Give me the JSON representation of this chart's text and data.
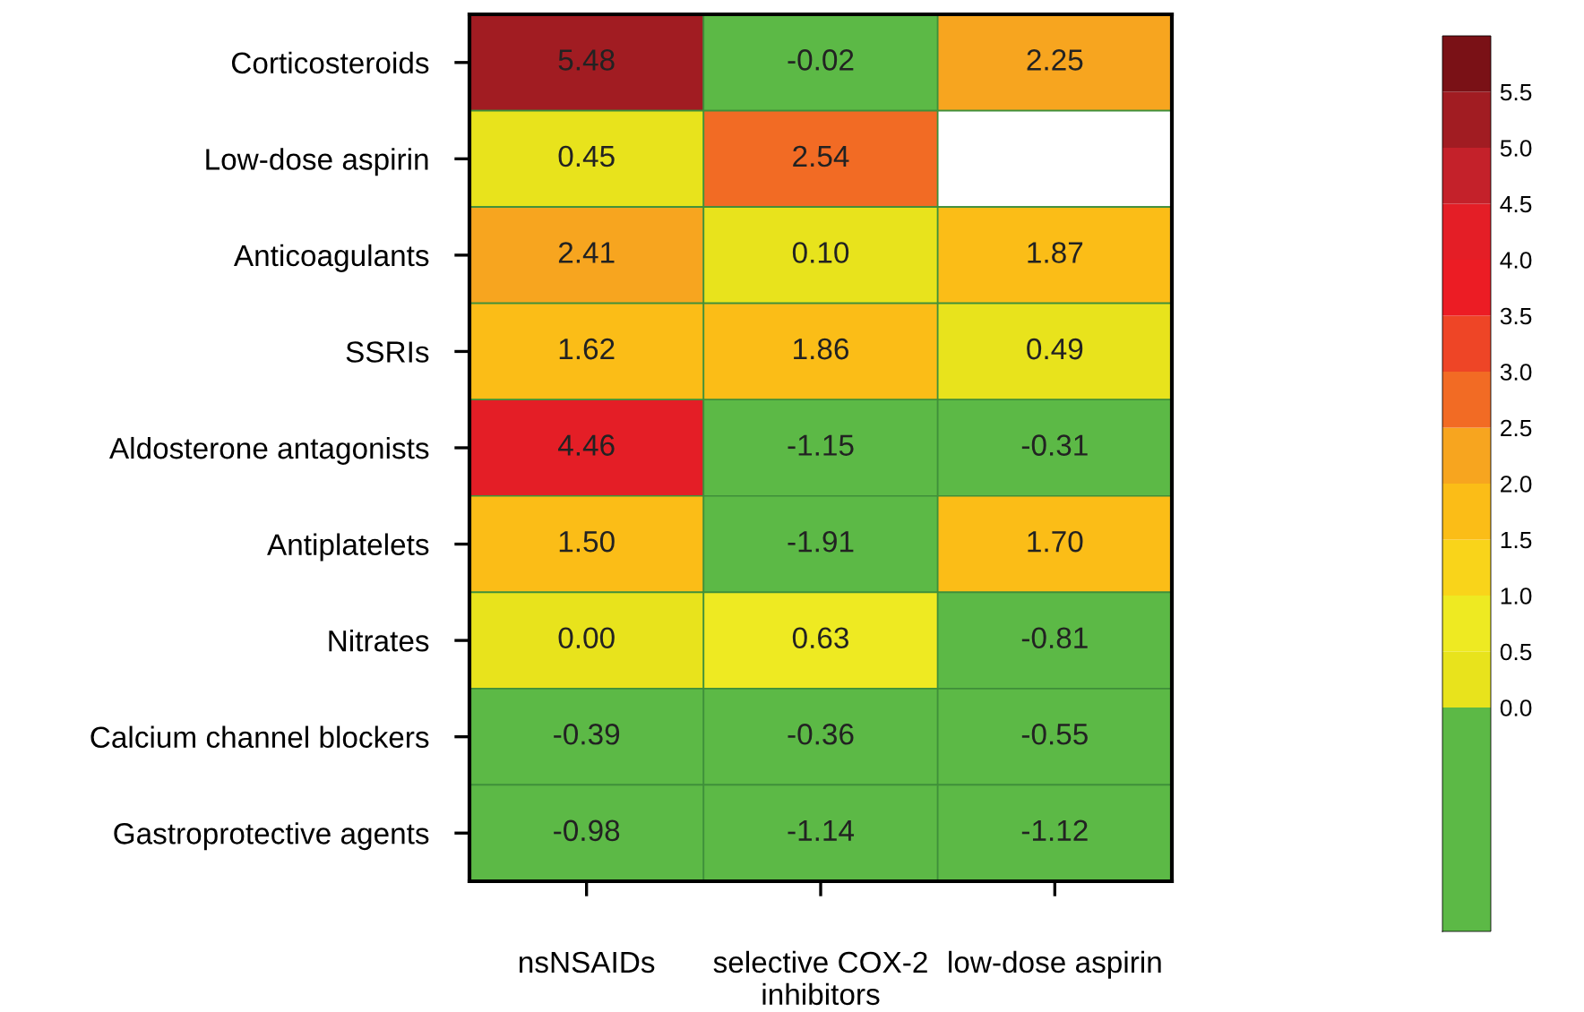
{
  "chart_data": {
    "type": "heatmap",
    "categories": [
      "nsNSAIDs",
      "selective COX-2\ninhibitors",
      "low-dose aspirin"
    ],
    "y_categories": [
      "Corticosteroids",
      "Low-dose aspirin",
      "Anticoagulants",
      "SSRIs",
      "Aldosterone antagonists",
      "Antiplatelets",
      "Nitrates",
      "Calcium channel blockers",
      "Gastroprotective agents"
    ],
    "cells": [
      [
        5.48,
        -0.02,
        2.25
      ],
      [
        0.45,
        2.54,
        null
      ],
      [
        2.41,
        0.1,
        1.87
      ],
      [
        1.62,
        1.86,
        0.49
      ],
      [
        4.46,
        -1.15,
        -0.31
      ],
      [
        1.5,
        -1.91,
        1.7
      ],
      [
        0.0,
        0.63,
        -0.81
      ],
      [
        -0.39,
        -0.36,
        -0.55
      ],
      [
        -0.98,
        -1.14,
        -1.12
      ]
    ],
    "cell_labels": [
      [
        "5.48",
        "-0.02",
        "2.25"
      ],
      [
        "0.45",
        "2.54",
        null
      ],
      [
        "2.41",
        "0.10",
        "1.87"
      ],
      [
        "1.62",
        "1.86",
        "0.49"
      ],
      [
        "4.46",
        "-1.15",
        "-0.31"
      ],
      [
        "1.50",
        "-1.91",
        "1.70"
      ],
      [
        "0.00",
        "0.63",
        "-0.81"
      ],
      [
        "-0.39",
        "-0.36",
        "-0.55"
      ],
      [
        "-0.98",
        "-1.14",
        "-1.12"
      ]
    ],
    "clim": [
      -2,
      6
    ],
    "cticks": [
      {
        "value": 0,
        "label": "0.0"
      },
      0.5,
      {
        "value": 1,
        "label": "1.0"
      },
      1.5,
      {
        "value": 2,
        "label": "2.0"
      },
      2.5,
      {
        "value": 3,
        "label": "3.0"
      },
      3.5,
      {
        "value": 4,
        "label": "4.0"
      },
      4.5,
      {
        "value": 5,
        "label": "5.0"
      },
      5.5
    ],
    "colors": [
      "#5cb946",
      "#e8e31c",
      "#eeea22",
      "#f9d41a",
      "#fbbd17",
      "#f7a51f",
      "#f26b24",
      "#ee4526",
      "#ec1c24",
      "#e41e26",
      "#c4212a",
      "#a11c22",
      "#7a1116"
    ]
  }
}
